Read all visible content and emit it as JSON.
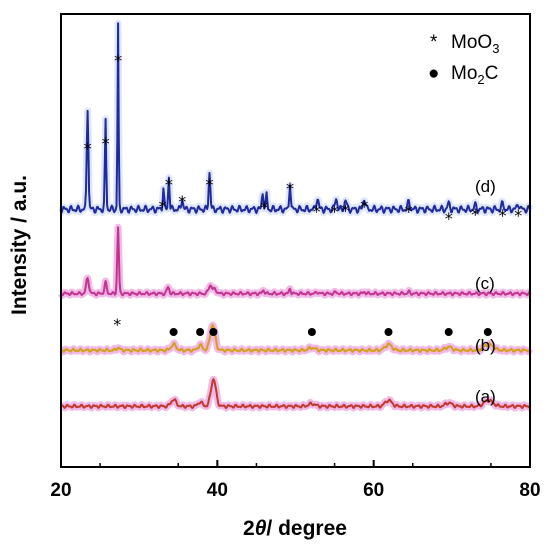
{
  "chart_data": {
    "type": "line",
    "xlabel_prefix": "2",
    "xlabel_theta": "θ",
    "xlabel_suffix": "/ degree",
    "ylabel": "Intensity / a.u.",
    "xlim": [
      20,
      80
    ],
    "x_ticks": [
      "20",
      "40",
      "60",
      "80"
    ],
    "y_ticks": "none",
    "grid": false,
    "legend": {
      "placement": "top-right",
      "items": [
        {
          "symbol": "*",
          "label_main": "MoO",
          "label_sub": "3",
          "label_tail": ""
        },
        {
          "symbol": "●",
          "label_main": "Mo",
          "label_sub": "2",
          "label_tail": "C"
        }
      ]
    },
    "series": [
      {
        "name": "(a)",
        "color": "#c0392b",
        "halo": "#f2b8e8",
        "baseline": 0.02,
        "peaks": [
          [
            34.4,
            0.08,
            0.45
          ],
          [
            37.8,
            0.05,
            0.4
          ],
          [
            39.5,
            0.32,
            0.45
          ],
          [
            52.1,
            0.03,
            0.6
          ],
          [
            61.9,
            0.07,
            0.6
          ],
          [
            69.6,
            0.04,
            0.6
          ],
          [
            74.7,
            0.07,
            0.8
          ]
        ]
      },
      {
        "name": "(b)",
        "color": "#d4a017",
        "halo": "#f2b8e8",
        "baseline": 0.02,
        "peaks": [
          [
            27.3,
            0.03,
            0.3
          ],
          [
            34.4,
            0.07,
            0.45
          ],
          [
            37.8,
            0.06,
            0.4
          ],
          [
            39.4,
            0.3,
            0.45
          ],
          [
            52.1,
            0.03,
            0.6
          ],
          [
            61.9,
            0.07,
            0.6
          ],
          [
            69.6,
            0.04,
            0.6
          ],
          [
            74.7,
            0.07,
            0.8
          ]
        ]
      },
      {
        "name": "(c)",
        "color": "#c2348f",
        "halo": "#f2b8e8",
        "baseline": 0.04,
        "peaks": [
          [
            23.4,
            0.18,
            0.25
          ],
          [
            25.7,
            0.13,
            0.2
          ],
          [
            27.3,
            0.78,
            0.15
          ],
          [
            33.7,
            0.08,
            0.2
          ],
          [
            39.1,
            0.1,
            0.3
          ],
          [
            39.7,
            0.05,
            0.3
          ],
          [
            45.9,
            0.04,
            0.2
          ],
          [
            49.3,
            0.06,
            0.15
          ],
          [
            52.8,
            0.02,
            0.2
          ],
          [
            55.2,
            0.02,
            0.2
          ],
          [
            58.8,
            0.02,
            0.2
          ],
          [
            64.5,
            0.02,
            0.2
          ]
        ]
      },
      {
        "name": "(d)",
        "color": "#1f2a9e",
        "halo": "#dfe6ff",
        "baseline": 0.02,
        "peaks": [
          [
            23.4,
            0.55,
            0.15
          ],
          [
            25.7,
            0.48,
            0.12
          ],
          [
            27.3,
            1.0,
            0.1
          ],
          [
            33.1,
            0.12,
            0.12
          ],
          [
            33.8,
            0.18,
            0.12
          ],
          [
            35.5,
            0.06,
            0.15
          ],
          [
            39.0,
            0.2,
            0.15
          ],
          [
            45.8,
            0.09,
            0.15
          ],
          [
            46.3,
            0.08,
            0.12
          ],
          [
            49.3,
            0.15,
            0.12
          ],
          [
            52.8,
            0.06,
            0.2
          ],
          [
            55.2,
            0.06,
            0.2
          ],
          [
            56.4,
            0.05,
            0.2
          ],
          [
            58.8,
            0.06,
            0.2
          ],
          [
            64.5,
            0.04,
            0.2
          ],
          [
            69.6,
            0.03,
            0.2
          ],
          [
            73.0,
            0.02,
            0.2
          ],
          [
            76.5,
            0.03,
            0.2
          ],
          [
            78.5,
            0.03,
            0.2
          ]
        ]
      }
    ],
    "markers": [
      {
        "kind": "star",
        "x": [
          27.2
        ]
      },
      {
        "kind": "dot",
        "x": [
          34.4,
          37.8,
          39.5,
          52.1,
          61.9,
          69.6,
          74.6
        ]
      },
      {
        "kind": "star",
        "x": [
          23.4,
          25.7,
          27.3,
          33.0,
          33.8,
          35.5,
          39.0,
          46.0,
          49.3,
          52.7,
          55.0,
          56.4,
          58.8,
          64.5,
          69.6,
          73.0,
          76.5,
          78.5
        ]
      }
    ]
  }
}
